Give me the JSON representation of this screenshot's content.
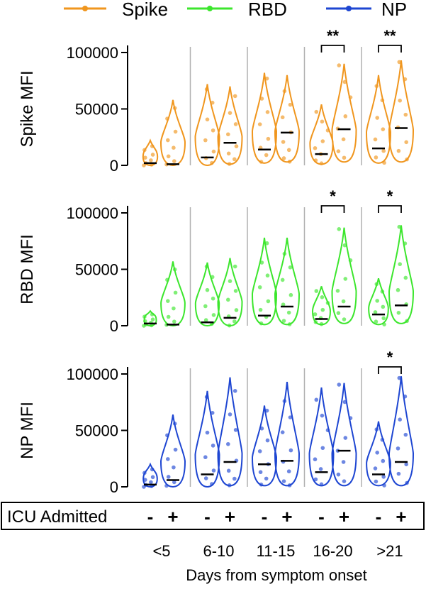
{
  "legend": [
    {
      "name": "Spike",
      "color": "#F0961E"
    },
    {
      "name": "RBD",
      "color": "#3CE62D"
    },
    {
      "name": "NP",
      "color": "#1E46D2"
    }
  ],
  "icu": {
    "label": "ICU Admitted",
    "signs": [
      "-",
      "+",
      "-",
      "+",
      "-",
      "+",
      "-",
      "+",
      "-",
      "+"
    ]
  },
  "axis": {
    "xlabel": "Days from symptom onset",
    "categories": [
      "<5",
      "6-10",
      "11-15",
      "16-20",
      ">21"
    ]
  },
  "chart_data": [
    {
      "type": "violin",
      "title": "",
      "ylabel": "Spike MFI",
      "ylim": [
        0,
        100000
      ],
      "yticks": [
        0,
        50000,
        100000
      ],
      "ytick_labels": [
        "0",
        "50000",
        "100000"
      ],
      "color": "#F0961E",
      "categories": [
        "<5",
        "6-10",
        "11-15",
        "16-20",
        ">21"
      ],
      "series": [
        {
          "name": "ICU -",
          "min": [
            0,
            0,
            2000,
            1000,
            2000
          ],
          "max": [
            22000,
            72000,
            82000,
            54000,
            80000
          ],
          "median": [
            2000,
            7000,
            14000,
            10000,
            15000
          ]
        },
        {
          "name": "ICU +",
          "min": [
            0,
            1000,
            3000,
            3000,
            3000
          ],
          "max": [
            58000,
            70000,
            80000,
            90000,
            93000
          ],
          "median": [
            1000,
            20000,
            29000,
            32000,
            33000
          ]
        }
      ],
      "significance": [
        {
          "category": "16-20",
          "label": "**"
        },
        {
          "category": ">21",
          "label": "**"
        }
      ]
    },
    {
      "type": "violin",
      "title": "",
      "ylabel": "RBD MFI",
      "ylim": [
        0,
        100000
      ],
      "yticks": [
        0,
        50000,
        100000
      ],
      "ytick_labels": [
        "0",
        "50000",
        "100000"
      ],
      "color": "#3CE62D",
      "categories": [
        "<5",
        "6-10",
        "11-15",
        "16-20",
        ">21"
      ],
      "series": [
        {
          "name": "ICU -",
          "min": [
            0,
            0,
            1000,
            1000,
            1000
          ],
          "max": [
            13000,
            56000,
            78000,
            35000,
            42000
          ],
          "median": [
            2000,
            3000,
            9000,
            6000,
            10000
          ]
        },
        {
          "name": "ICU +",
          "min": [
            0,
            0,
            1000,
            2000,
            2000
          ],
          "max": [
            57000,
            60000,
            78000,
            87000,
            89000
          ],
          "median": [
            1000,
            7000,
            17000,
            17000,
            18000
          ]
        }
      ],
      "significance": [
        {
          "category": "16-20",
          "label": "*"
        },
        {
          "category": ">21",
          "label": "*"
        }
      ]
    },
    {
      "type": "violin",
      "title": "",
      "ylabel": "NP MFI",
      "ylim": [
        0,
        100000
      ],
      "yticks": [
        0,
        50000,
        100000
      ],
      "ytick_labels": [
        "0",
        "50000",
        "100000"
      ],
      "color": "#1E46D2",
      "categories": [
        "<5",
        "6-10",
        "11-15",
        "16-20",
        ">21"
      ],
      "series": [
        {
          "name": "ICU -",
          "min": [
            0,
            0,
            1000,
            1000,
            1000
          ],
          "max": [
            20000,
            85000,
            72000,
            88000,
            58000
          ],
          "median": [
            2000,
            11000,
            20000,
            13000,
            11000
          ]
        },
        {
          "name": "ICU +",
          "min": [
            0,
            1000,
            1000,
            1000,
            1000
          ],
          "max": [
            64000,
            97000,
            93000,
            92000,
            98000
          ],
          "median": [
            6000,
            22000,
            23000,
            32000,
            22000
          ]
        }
      ],
      "significance": [
        {
          "category": ">21",
          "label": "*"
        }
      ]
    }
  ]
}
